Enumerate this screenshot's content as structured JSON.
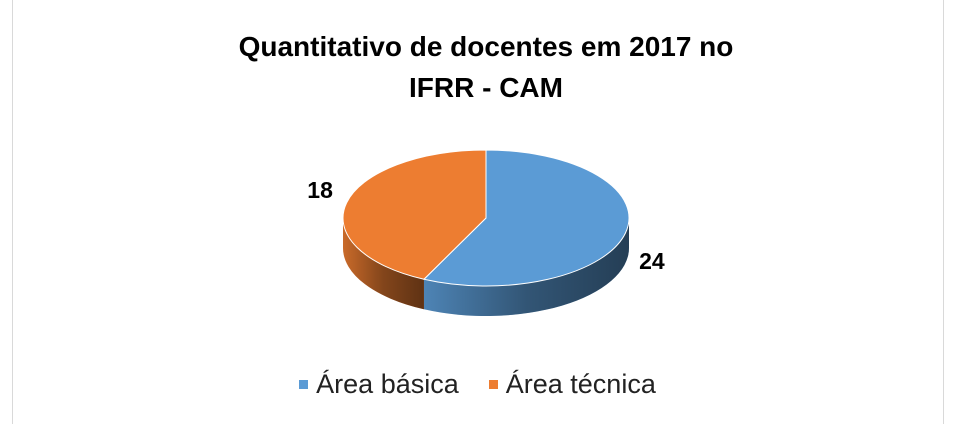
{
  "chart_data": {
    "type": "pie3d",
    "title": "Quantitativo de docentes em 2017 no IFRR - CAM",
    "categories": [
      "Área básica",
      "Área técnica"
    ],
    "values": [
      24,
      18
    ],
    "colors": [
      "#5b9bd5",
      "#ed7d31"
    ],
    "legend": "bottom"
  }
}
